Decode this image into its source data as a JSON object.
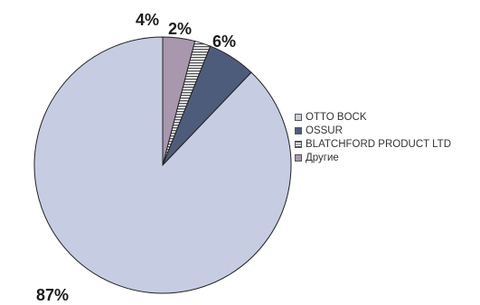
{
  "chart_data": {
    "type": "pie",
    "title": "",
    "slices": [
      {
        "label": "OTTO BOCK",
        "value": 87,
        "value_label": "87%",
        "color": "#c6cde3",
        "pattern": "solid"
      },
      {
        "label": "OSSUR",
        "value": 6,
        "value_label": "6%",
        "color": "#4e5c7c",
        "pattern": "solid"
      },
      {
        "label": "BLATCHFORD PRODUCT LTD",
        "value": 2,
        "value_label": "2%",
        "color": "#ffffff",
        "pattern": "horizontal-stripes",
        "stripe_color": "#555555"
      },
      {
        "label": "Другие",
        "value": 4,
        "value_label": "4%",
        "color": "#a897ad",
        "pattern": "solid"
      }
    ],
    "start": "top, clockwise",
    "legend_position": "right"
  }
}
